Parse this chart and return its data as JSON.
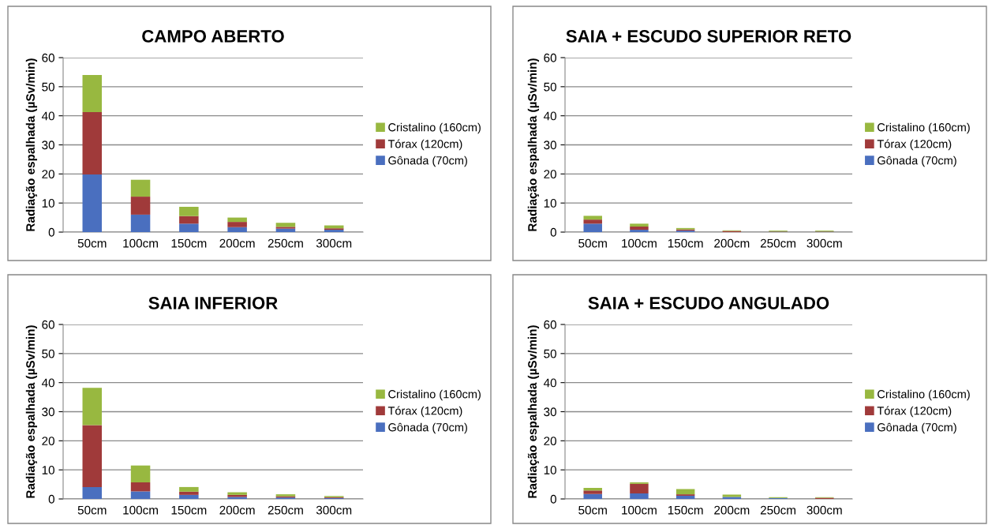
{
  "chart_data": [
    {
      "type": "bar",
      "title": "CAMPO ABERTO",
      "ylabel": "Radiação espalhada (µSv/min)",
      "categories": [
        "50cm",
        "100cm",
        "150cm",
        "200cm",
        "250cm",
        "300cm"
      ],
      "stacked": true,
      "ylim": [
        0,
        60
      ],
      "yticks": [
        0,
        10,
        20,
        30,
        40,
        50,
        60
      ],
      "grid": "y",
      "legend": "right",
      "series": [
        {
          "name": "Gônada (70cm)",
          "color": "#4a6fbf",
          "values": [
            19.8,
            6.0,
            2.9,
            1.7,
            1.2,
            0.8
          ]
        },
        {
          "name": "Tórax (120cm)",
          "color": "#a03a3a",
          "values": [
            21.5,
            6.2,
            2.6,
            1.8,
            0.6,
            0.5
          ]
        },
        {
          "name": "Cristalino (160cm)",
          "color": "#98b840",
          "values": [
            12.7,
            5.8,
            3.2,
            1.5,
            1.4,
            1.0
          ]
        }
      ]
    },
    {
      "type": "bar",
      "title": "SAIA + ESCUDO SUPERIOR RETO",
      "ylabel": "Radiação espalhada (µSv/min)",
      "categories": [
        "50cm",
        "100cm",
        "150cm",
        "200cm",
        "250cm",
        "300cm"
      ],
      "stacked": true,
      "ylim": [
        0,
        60
      ],
      "yticks": [
        0,
        10,
        20,
        30,
        40,
        50,
        60
      ],
      "grid": "y",
      "legend": "right",
      "series": [
        {
          "name": "Gônada (70cm)",
          "color": "#4a6fbf",
          "values": [
            2.9,
            0.8,
            0.5,
            null,
            0.1,
            0.1
          ]
        },
        {
          "name": "Tórax (120cm)",
          "color": "#a03a3a",
          "values": [
            1.4,
            1.1,
            0.4,
            0.4,
            0.1,
            0.1
          ]
        },
        {
          "name": "Cristalino (160cm)",
          "color": "#98b840",
          "values": [
            1.3,
            1.0,
            0.5,
            0.2,
            0.3,
            0.3
          ]
        }
      ]
    },
    {
      "type": "bar",
      "title": "SAIA INFERIOR",
      "ylabel": "Radiação espalhada (µSv/min)",
      "categories": [
        "50cm",
        "100cm",
        "150cm",
        "200cm",
        "250cm",
        "300cm"
      ],
      "stacked": true,
      "ylim": [
        0,
        60
      ],
      "yticks": [
        0,
        10,
        20,
        30,
        40,
        50,
        60
      ],
      "grid": "y",
      "legend": "right",
      "series": [
        {
          "name": "Gônada (70cm)",
          "color": "#4a6fbf",
          "values": [
            4.1,
            2.6,
            1.4,
            0.7,
            0.5,
            0.3
          ]
        },
        {
          "name": "Tórax (120cm)",
          "color": "#a03a3a",
          "values": [
            21.3,
            3.1,
            1.1,
            0.7,
            0.4,
            0.3
          ]
        },
        {
          "name": "Cristalino (160cm)",
          "color": "#98b840",
          "values": [
            12.8,
            5.8,
            1.6,
            0.9,
            0.7,
            0.4
          ]
        }
      ]
    },
    {
      "type": "bar",
      "title": "SAIA + ESCUDO ANGULADO",
      "ylabel": "Radiação espalhada (µSv/min)",
      "categories": [
        "50cm",
        "100cm",
        "150cm",
        "200cm",
        "250cm",
        "300cm"
      ],
      "stacked": true,
      "ylim": [
        0,
        60
      ],
      "yticks": [
        0,
        10,
        20,
        30,
        40,
        50,
        60
      ],
      "grid": "y",
      "legend": "right",
      "series": [
        {
          "name": "Gônada (70cm)",
          "color": "#4a6fbf",
          "values": [
            1.7,
            1.9,
            1.1,
            0.7,
            0.3,
            null
          ]
        },
        {
          "name": "Tórax (120cm)",
          "color": "#a03a3a",
          "values": [
            1.2,
            3.3,
            0.5,
            null,
            null,
            0.4
          ]
        },
        {
          "name": "Cristalino (160cm)",
          "color": "#98b840",
          "values": [
            0.9,
            0.5,
            1.8,
            0.8,
            0.3,
            0.2
          ]
        }
      ]
    }
  ]
}
